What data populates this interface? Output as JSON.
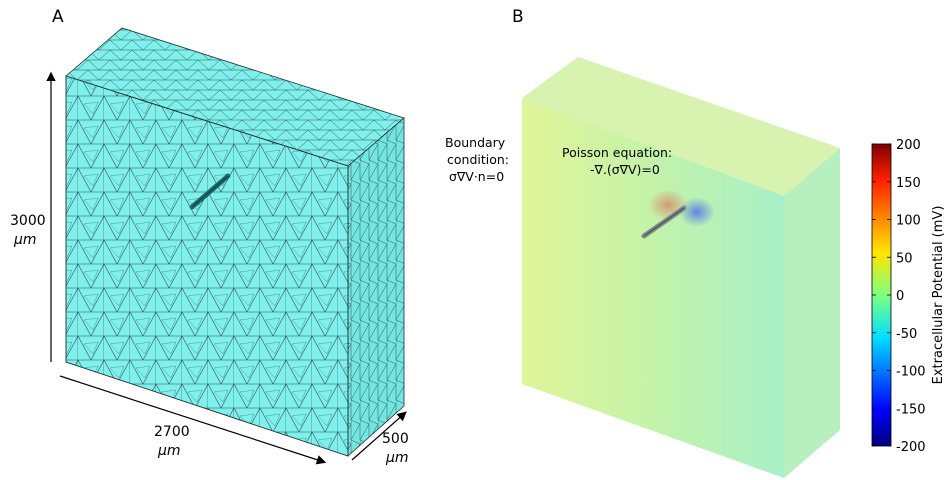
{
  "panel_a": {
    "label": "A",
    "dim_height": {
      "value": "3000",
      "unit": "μm"
    },
    "dim_width": {
      "value": "2700",
      "unit": "μm"
    },
    "dim_depth": {
      "value": "500",
      "unit": "μm"
    },
    "colors": {
      "mesh_fill": "#7ff0ec",
      "mesh_line": "#1a2e2e",
      "probe": "#1c6e6e"
    }
  },
  "panel_b": {
    "label": "B",
    "boundary": {
      "line1": "Boundary",
      "line2": "condition:",
      "line3": "σ∇V·n=0"
    },
    "poisson": {
      "line1": "Poisson equation:",
      "line2": "-∇.(σ∇V)=0"
    },
    "colorbar": {
      "label": "Extracellular Potential (mV)",
      "ticks": [
        "200",
        "150",
        "100",
        "50",
        "0",
        "-50",
        "-100",
        "-150",
        "-200"
      ],
      "range": [
        -200,
        200
      ],
      "colormap": "jet"
    },
    "colors": {
      "field_base": "#c6f3a6",
      "field_left": "#e0f49a",
      "field_right": "#a8f0c8"
    }
  }
}
